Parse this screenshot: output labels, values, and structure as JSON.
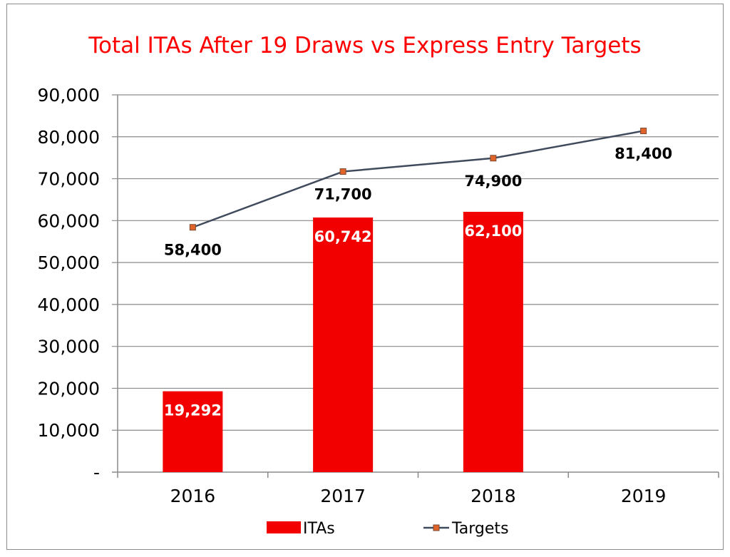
{
  "chart_data": {
    "type": "bar+line",
    "title": "Total ITAs After 19 Draws vs Express Entry Targets",
    "xlabel": "",
    "ylabel": "",
    "categories": [
      "2016",
      "2017",
      "2018",
      "2019"
    ],
    "ylim": [
      0,
      90000
    ],
    "yticks": [
      0,
      10000,
      20000,
      30000,
      40000,
      50000,
      60000,
      70000,
      80000,
      90000
    ],
    "ytick_labels": [
      "-",
      "10,000",
      "20,000",
      "30,000",
      "40,000",
      "50,000",
      "60,000",
      "70,000",
      "80,000",
      "90,000"
    ],
    "grid": true,
    "legend_position": "bottom",
    "series": [
      {
        "name": "ITAs",
        "type": "bar",
        "color": "#f20000",
        "values": [
          19292,
          60742,
          62100,
          null
        ],
        "labels": [
          "19,292",
          "60,742",
          "62,100",
          ""
        ]
      },
      {
        "name": "Targets",
        "type": "line",
        "color": "#3f4a5c",
        "marker_color": "#e0632a",
        "values": [
          58400,
          71700,
          74900,
          81400
        ],
        "labels": [
          "58,400",
          "71,700",
          "74,900",
          "81,400"
        ]
      }
    ]
  }
}
